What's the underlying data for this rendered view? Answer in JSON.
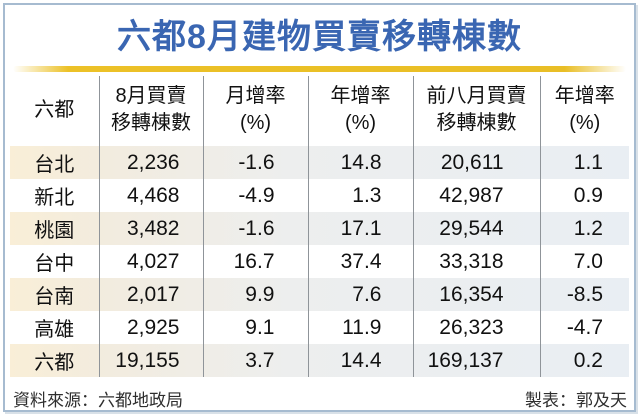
{
  "title": "六都8月建物買賣移轉棟數",
  "table": {
    "header_display": [
      "六都",
      "8月買賣\n移轉棟數",
      "月增率\n(%)",
      "年增率\n(%)",
      "前八月買賣\n移轉棟數",
      "年增率\n(%)"
    ]
  },
  "chart_data": {
    "type": "table",
    "title": "六都8月建物買賣移轉棟數",
    "columns": [
      "六都",
      "8月買賣移轉棟數",
      "月增率(%)",
      "年增率(%)",
      "前八月買賣移轉棟數",
      "年增率(%)"
    ],
    "rows": [
      [
        "台北",
        "2,236",
        "-1.6",
        "14.8",
        "20,611",
        "1.1"
      ],
      [
        "新北",
        "4,468",
        "-4.9",
        "1.3",
        "42,987",
        "0.9"
      ],
      [
        "桃園",
        "3,482",
        "-1.6",
        "17.1",
        "29,544",
        "1.2"
      ],
      [
        "台中",
        "4,027",
        "16.7",
        "37.4",
        "33,318",
        "7.0"
      ],
      [
        "台南",
        "2,017",
        "9.9",
        "7.6",
        "16,354",
        "-8.5"
      ],
      [
        "高雄",
        "2,925",
        "9.1",
        "11.9",
        "26,323",
        "-4.7"
      ],
      [
        "六都",
        "19,155",
        "3.7",
        "14.4",
        "169,137",
        "0.2"
      ]
    ],
    "numeric_values": {
      "aug_transfers": [
        2236,
        4468,
        3482,
        4027,
        2017,
        2925,
        19155
      ],
      "mom_pct": [
        -1.6,
        -4.9,
        -1.6,
        16.7,
        9.9,
        9.1,
        3.7
      ],
      "yoy_pct": [
        14.8,
        1.3,
        17.1,
        37.4,
        7.6,
        11.9,
        14.4
      ],
      "jan_aug_transfers": [
        20611,
        42987,
        29544,
        33318,
        16354,
        26323,
        169137
      ],
      "jan_aug_yoy_pct": [
        1.1,
        0.9,
        1.2,
        7.0,
        -8.5,
        -4.7,
        0.2
      ]
    }
  },
  "footer": {
    "source": "資料來源：六都地政局",
    "credit": "製表：郭及天"
  },
  "colors": {
    "title_blue": "#3A66B2",
    "gold_divider": "#E9BE26",
    "card_border": "#A6BBD0",
    "stripe_warm": "#F9EED7",
    "stripe_cool": "#E9EEF3",
    "grid_line": "#8F9499"
  }
}
